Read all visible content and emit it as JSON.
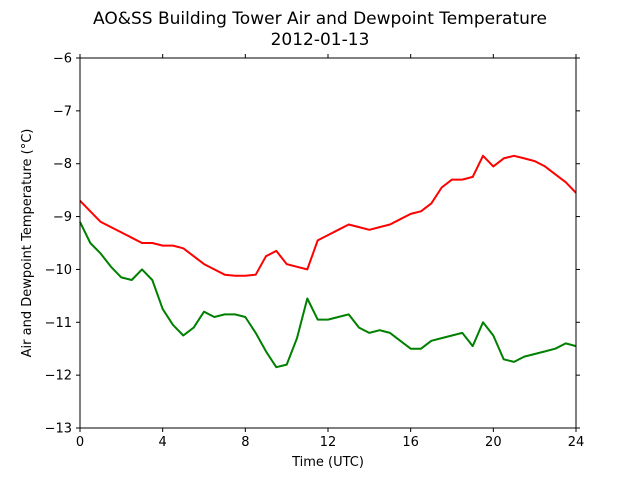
{
  "chart_data": {
    "type": "line",
    "title": "AO&SS Building Tower Air and Dewpoint Temperature",
    "subtitle": "2012-01-13",
    "xlabel": "Time (UTC)",
    "ylabel": "Air and Dewpoint Temperature (°C)",
    "xlim": [
      0,
      24
    ],
    "ylim": [
      -13,
      -6
    ],
    "xticks": [
      0,
      4,
      8,
      12,
      16,
      20,
      24
    ],
    "yticks": [
      -13,
      -12,
      -11,
      -10,
      -9,
      -8,
      -7,
      -6
    ],
    "xtick_labels": [
      "0",
      "4",
      "8",
      "12",
      "16",
      "20",
      "24"
    ],
    "ytick_labels": [
      "−13",
      "−12",
      "−11",
      "−10",
      "−9",
      "−8",
      "−7",
      "−6"
    ],
    "grid": false,
    "series": [
      {
        "color": "#ff0000",
        "x": [
          0,
          0.5,
          1,
          1.5,
          2,
          2.5,
          3,
          3.5,
          4,
          4.5,
          5,
          5.5,
          6,
          6.5,
          7,
          7.5,
          8,
          8.5,
          9,
          9.5,
          10,
          10.5,
          11,
          11.5,
          12,
          12.5,
          13,
          13.5,
          14,
          14.5,
          15,
          15.5,
          16,
          16.5,
          17,
          17.5,
          18,
          18.5,
          19,
          19.5,
          20,
          20.5,
          21,
          21.5,
          22,
          22.5,
          23,
          23.5,
          24
        ],
        "values": [
          -8.7,
          -8.9,
          -9.1,
          -9.2,
          -9.3,
          -9.4,
          -9.5,
          -9.5,
          -9.55,
          -9.55,
          -9.6,
          -9.75,
          -9.9,
          -10.0,
          -10.1,
          -10.12,
          -10.12,
          -10.1,
          -9.75,
          -9.65,
          -9.9,
          -9.95,
          -10.0,
          -9.45,
          -9.35,
          -9.25,
          -9.15,
          -9.2,
          -9.25,
          -9.2,
          -9.15,
          -9.05,
          -8.95,
          -8.9,
          -8.75,
          -8.45,
          -8.3,
          -8.3,
          -8.25,
          -7.85,
          -8.05,
          -7.9,
          -7.85,
          -7.9,
          -7.95,
          -8.05,
          -8.2,
          -8.35,
          -8.55
        ]
      },
      {
        "color": "#008000",
        "x": [
          0,
          0.5,
          1,
          1.5,
          2,
          2.5,
          3,
          3.5,
          4,
          4.5,
          5,
          5.5,
          6,
          6.5,
          7,
          7.5,
          8,
          8.5,
          9,
          9.5,
          10,
          10.5,
          11,
          11.5,
          12,
          12.5,
          13,
          13.5,
          14,
          14.5,
          15,
          15.5,
          16,
          16.5,
          17,
          17.5,
          18,
          18.5,
          19,
          19.5,
          20,
          20.5,
          21,
          21.5,
          22,
          22.5,
          23,
          23.5,
          24
        ],
        "values": [
          -9.1,
          -9.5,
          -9.7,
          -9.95,
          -10.15,
          -10.2,
          -10.0,
          -10.2,
          -10.75,
          -11.05,
          -11.25,
          -11.1,
          -10.8,
          -10.9,
          -10.85,
          -10.85,
          -10.9,
          -11.2,
          -11.55,
          -11.85,
          -11.8,
          -11.3,
          -10.55,
          -10.95,
          -10.95,
          -10.9,
          -10.85,
          -11.1,
          -11.2,
          -11.15,
          -11.2,
          -11.35,
          -11.5,
          -11.5,
          -11.35,
          -11.3,
          -11.25,
          -11.2,
          -11.45,
          -11.0,
          -11.25,
          -11.7,
          -11.75,
          -11.65,
          -11.6,
          -11.55,
          -11.5,
          -11.4,
          -11.45
        ]
      }
    ]
  }
}
